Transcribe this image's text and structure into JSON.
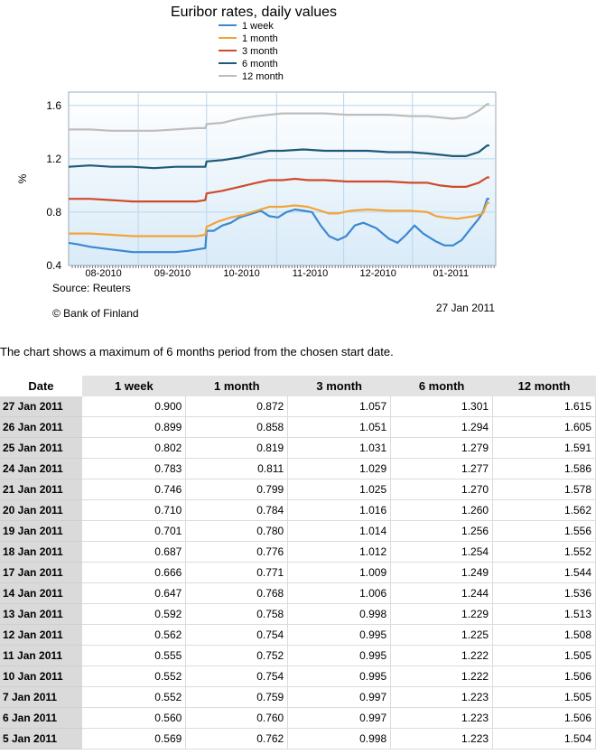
{
  "chart_data": {
    "type": "line",
    "title": "Euribor rates, daily values",
    "xlabel": "",
    "ylabel": "%",
    "ylim": [
      0.4,
      1.7
    ],
    "yticks": [
      "0.4",
      "0.8",
      "1.2",
      "1.6"
    ],
    "xticks": [
      "08-2010",
      "09-2010",
      "10-2010",
      "11-2010",
      "12-2010",
      "01-2011"
    ],
    "source": "Source: Reuters",
    "copyright": "© Bank of Finland",
    "date": "27 Jan 2011",
    "grid": true,
    "legend_position": "top",
    "series": [
      {
        "name": "1 week",
        "color": "#3b88d2",
        "points": [
          [
            0,
            0.57
          ],
          [
            0.02,
            0.56
          ],
          [
            0.05,
            0.54
          ],
          [
            0.1,
            0.52
          ],
          [
            0.15,
            0.5
          ],
          [
            0.2,
            0.5
          ],
          [
            0.25,
            0.5
          ],
          [
            0.28,
            0.51
          ],
          [
            0.3,
            0.52
          ],
          [
            0.32,
            0.53
          ],
          [
            0.323,
            0.66
          ],
          [
            0.34,
            0.66
          ],
          [
            0.36,
            0.7
          ],
          [
            0.38,
            0.72
          ],
          [
            0.4,
            0.76
          ],
          [
            0.43,
            0.79
          ],
          [
            0.45,
            0.81
          ],
          [
            0.47,
            0.77
          ],
          [
            0.49,
            0.76
          ],
          [
            0.51,
            0.8
          ],
          [
            0.53,
            0.82
          ],
          [
            0.55,
            0.81
          ],
          [
            0.57,
            0.8
          ],
          [
            0.59,
            0.7
          ],
          [
            0.61,
            0.62
          ],
          [
            0.63,
            0.59
          ],
          [
            0.65,
            0.62
          ],
          [
            0.67,
            0.7
          ],
          [
            0.69,
            0.72
          ],
          [
            0.72,
            0.68
          ],
          [
            0.75,
            0.6
          ],
          [
            0.77,
            0.57
          ],
          [
            0.79,
            0.63
          ],
          [
            0.81,
            0.7
          ],
          [
            0.83,
            0.64
          ],
          [
            0.86,
            0.58
          ],
          [
            0.88,
            0.55
          ],
          [
            0.9,
            0.55
          ],
          [
            0.92,
            0.59
          ],
          [
            0.94,
            0.67
          ],
          [
            0.96,
            0.75
          ],
          [
            0.97,
            0.8
          ],
          [
            0.98,
            0.9
          ],
          [
            0.985,
            0.9
          ]
        ]
      },
      {
        "name": "1 month",
        "color": "#f2a43a",
        "points": [
          [
            0,
            0.64
          ],
          [
            0.05,
            0.64
          ],
          [
            0.1,
            0.63
          ],
          [
            0.15,
            0.62
          ],
          [
            0.2,
            0.62
          ],
          [
            0.25,
            0.62
          ],
          [
            0.3,
            0.62
          ],
          [
            0.32,
            0.63
          ],
          [
            0.323,
            0.69
          ],
          [
            0.35,
            0.73
          ],
          [
            0.38,
            0.76
          ],
          [
            0.41,
            0.78
          ],
          [
            0.44,
            0.81
          ],
          [
            0.47,
            0.84
          ],
          [
            0.5,
            0.84
          ],
          [
            0.53,
            0.85
          ],
          [
            0.56,
            0.84
          ],
          [
            0.59,
            0.81
          ],
          [
            0.61,
            0.79
          ],
          [
            0.63,
            0.79
          ],
          [
            0.66,
            0.81
          ],
          [
            0.7,
            0.82
          ],
          [
            0.75,
            0.81
          ],
          [
            0.8,
            0.81
          ],
          [
            0.84,
            0.8
          ],
          [
            0.86,
            0.77
          ],
          [
            0.88,
            0.76
          ],
          [
            0.91,
            0.75
          ],
          [
            0.93,
            0.76
          ],
          [
            0.95,
            0.77
          ],
          [
            0.97,
            0.79
          ],
          [
            0.98,
            0.87
          ],
          [
            0.985,
            0.87
          ]
        ]
      },
      {
        "name": "3 month",
        "color": "#d04a2a",
        "points": [
          [
            0,
            0.9
          ],
          [
            0.05,
            0.9
          ],
          [
            0.1,
            0.89
          ],
          [
            0.15,
            0.88
          ],
          [
            0.2,
            0.88
          ],
          [
            0.25,
            0.88
          ],
          [
            0.3,
            0.88
          ],
          [
            0.32,
            0.89
          ],
          [
            0.323,
            0.94
          ],
          [
            0.36,
            0.96
          ],
          [
            0.4,
            0.99
          ],
          [
            0.44,
            1.02
          ],
          [
            0.47,
            1.04
          ],
          [
            0.5,
            1.04
          ],
          [
            0.53,
            1.05
          ],
          [
            0.56,
            1.04
          ],
          [
            0.6,
            1.04
          ],
          [
            0.65,
            1.03
          ],
          [
            0.7,
            1.03
          ],
          [
            0.75,
            1.03
          ],
          [
            0.8,
            1.02
          ],
          [
            0.84,
            1.02
          ],
          [
            0.87,
            1.0
          ],
          [
            0.9,
            0.99
          ],
          [
            0.93,
            0.99
          ],
          [
            0.96,
            1.02
          ],
          [
            0.98,
            1.06
          ],
          [
            0.985,
            1.06
          ]
        ]
      },
      {
        "name": "6 month",
        "color": "#1f5a78",
        "points": [
          [
            0,
            1.14
          ],
          [
            0.05,
            1.15
          ],
          [
            0.1,
            1.14
          ],
          [
            0.15,
            1.14
          ],
          [
            0.2,
            1.13
          ],
          [
            0.25,
            1.14
          ],
          [
            0.3,
            1.14
          ],
          [
            0.32,
            1.14
          ],
          [
            0.323,
            1.18
          ],
          [
            0.36,
            1.19
          ],
          [
            0.4,
            1.21
          ],
          [
            0.44,
            1.24
          ],
          [
            0.47,
            1.26
          ],
          [
            0.5,
            1.26
          ],
          [
            0.55,
            1.27
          ],
          [
            0.6,
            1.26
          ],
          [
            0.65,
            1.26
          ],
          [
            0.7,
            1.26
          ],
          [
            0.75,
            1.25
          ],
          [
            0.8,
            1.25
          ],
          [
            0.84,
            1.24
          ],
          [
            0.87,
            1.23
          ],
          [
            0.9,
            1.22
          ],
          [
            0.93,
            1.22
          ],
          [
            0.96,
            1.25
          ],
          [
            0.98,
            1.3
          ],
          [
            0.985,
            1.3
          ]
        ]
      },
      {
        "name": "12 month",
        "color": "#bdbdbd",
        "points": [
          [
            0,
            1.42
          ],
          [
            0.05,
            1.42
          ],
          [
            0.1,
            1.41
          ],
          [
            0.15,
            1.41
          ],
          [
            0.2,
            1.41
          ],
          [
            0.25,
            1.42
          ],
          [
            0.3,
            1.43
          ],
          [
            0.32,
            1.43
          ],
          [
            0.323,
            1.46
          ],
          [
            0.36,
            1.47
          ],
          [
            0.4,
            1.5
          ],
          [
            0.44,
            1.52
          ],
          [
            0.47,
            1.53
          ],
          [
            0.5,
            1.54
          ],
          [
            0.55,
            1.54
          ],
          [
            0.6,
            1.54
          ],
          [
            0.65,
            1.53
          ],
          [
            0.7,
            1.53
          ],
          [
            0.75,
            1.53
          ],
          [
            0.8,
            1.52
          ],
          [
            0.84,
            1.52
          ],
          [
            0.87,
            1.51
          ],
          [
            0.9,
            1.5
          ],
          [
            0.93,
            1.51
          ],
          [
            0.96,
            1.56
          ],
          [
            0.98,
            1.61
          ],
          [
            0.985,
            1.61
          ]
        ]
      }
    ]
  },
  "note": "The chart shows a maximum of 6 months period from the chosen start date.",
  "table": {
    "headers": [
      "Date",
      "1 week",
      "1 month",
      "3 month",
      "6 month",
      "12 month"
    ],
    "rows": [
      [
        "27 Jan 2011",
        "0.900",
        "0.872",
        "1.057",
        "1.301",
        "1.615"
      ],
      [
        "26 Jan 2011",
        "0.899",
        "0.858",
        "1.051",
        "1.294",
        "1.605"
      ],
      [
        "25 Jan 2011",
        "0.802",
        "0.819",
        "1.031",
        "1.279",
        "1.591"
      ],
      [
        "24 Jan 2011",
        "0.783",
        "0.811",
        "1.029",
        "1.277",
        "1.586"
      ],
      [
        "21 Jan 2011",
        "0.746",
        "0.799",
        "1.025",
        "1.270",
        "1.578"
      ],
      [
        "20 Jan 2011",
        "0.710",
        "0.784",
        "1.016",
        "1.260",
        "1.562"
      ],
      [
        "19 Jan 2011",
        "0.701",
        "0.780",
        "1.014",
        "1.256",
        "1.556"
      ],
      [
        "18 Jan 2011",
        "0.687",
        "0.776",
        "1.012",
        "1.254",
        "1.552"
      ],
      [
        "17 Jan 2011",
        "0.666",
        "0.771",
        "1.009",
        "1.249",
        "1.544"
      ],
      [
        "14 Jan 2011",
        "0.647",
        "0.768",
        "1.006",
        "1.244",
        "1.536"
      ],
      [
        "13 Jan 2011",
        "0.592",
        "0.758",
        "0.998",
        "1.229",
        "1.513"
      ],
      [
        "12 Jan 2011",
        "0.562",
        "0.754",
        "0.995",
        "1.225",
        "1.508"
      ],
      [
        "11 Jan 2011",
        "0.555",
        "0.752",
        "0.995",
        "1.222",
        "1.505"
      ],
      [
        "10 Jan 2011",
        "0.552",
        "0.754",
        "0.995",
        "1.222",
        "1.506"
      ],
      [
        "7 Jan 2011",
        "0.552",
        "0.759",
        "0.997",
        "1.223",
        "1.505"
      ],
      [
        "6 Jan 2011",
        "0.560",
        "0.760",
        "0.997",
        "1.223",
        "1.506"
      ],
      [
        "5 Jan 2011",
        "0.569",
        "0.762",
        "0.998",
        "1.223",
        "1.504"
      ]
    ]
  }
}
